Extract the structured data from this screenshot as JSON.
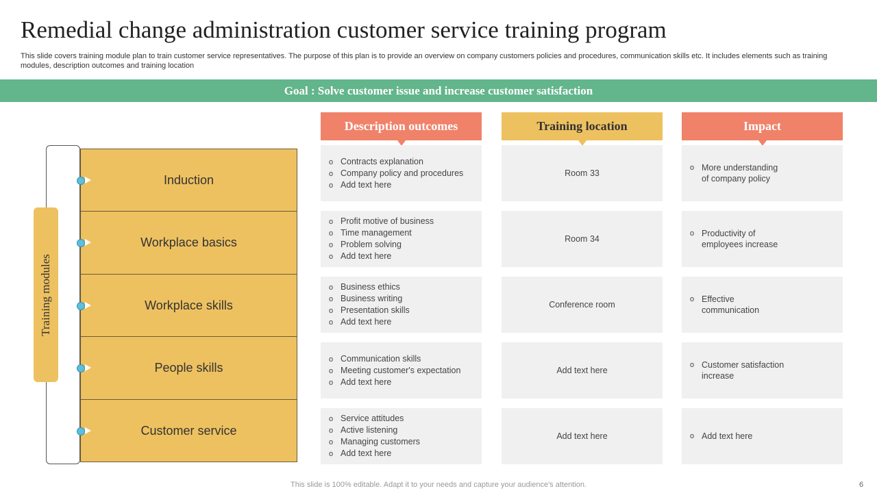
{
  "title": "Remedial change administration customer service training program",
  "subtitle": "This slide covers training module plan to train customer service representatives. The purpose of this plan is to provide an overview on company customers policies and procedures, communication skills etc. It includes elements such as training modules, description outcomes and training location",
  "goal": "Goal : Solve customer issue and increase customer satisfaction",
  "side_label": "Training modules",
  "headers": {
    "description": "Description outcomes",
    "location": "Training location",
    "impact": "Impact"
  },
  "colors": {
    "green": "#63b58c",
    "salmon": "#f0826a",
    "gold": "#eec160"
  },
  "rows": [
    {
      "module": "Induction",
      "description": [
        "Contracts explanation",
        "Company policy and procedures",
        "Add text here"
      ],
      "location": "Room 33",
      "impact": [
        "More understanding of company policy"
      ]
    },
    {
      "module": "Workplace basics",
      "description": [
        "Profit motive of business",
        "Time management",
        "Problem solving",
        "Add text here"
      ],
      "location": "Room 34",
      "impact": [
        "Productivity of employees increase"
      ]
    },
    {
      "module": "Workplace skills",
      "description": [
        "Business ethics",
        "Business writing",
        "Presentation skills",
        "Add text here"
      ],
      "location": "Conference  room",
      "impact": [
        "Effective communication"
      ]
    },
    {
      "module": "People skills",
      "description": [
        "Communication skills",
        "Meeting customer's expectation",
        "Add text here"
      ],
      "location": "Add text here",
      "impact": [
        "Customer satisfaction increase"
      ]
    },
    {
      "module": "Customer service",
      "description": [
        "Service attitudes",
        "Active listening",
        "Managing customers",
        "Add text here"
      ],
      "location": "Add text here",
      "impact": [
        "Add text here"
      ]
    }
  ],
  "footer": "This slide is 100% editable. Adapt it to your needs and capture your audience's attention.",
  "page_number": "6"
}
